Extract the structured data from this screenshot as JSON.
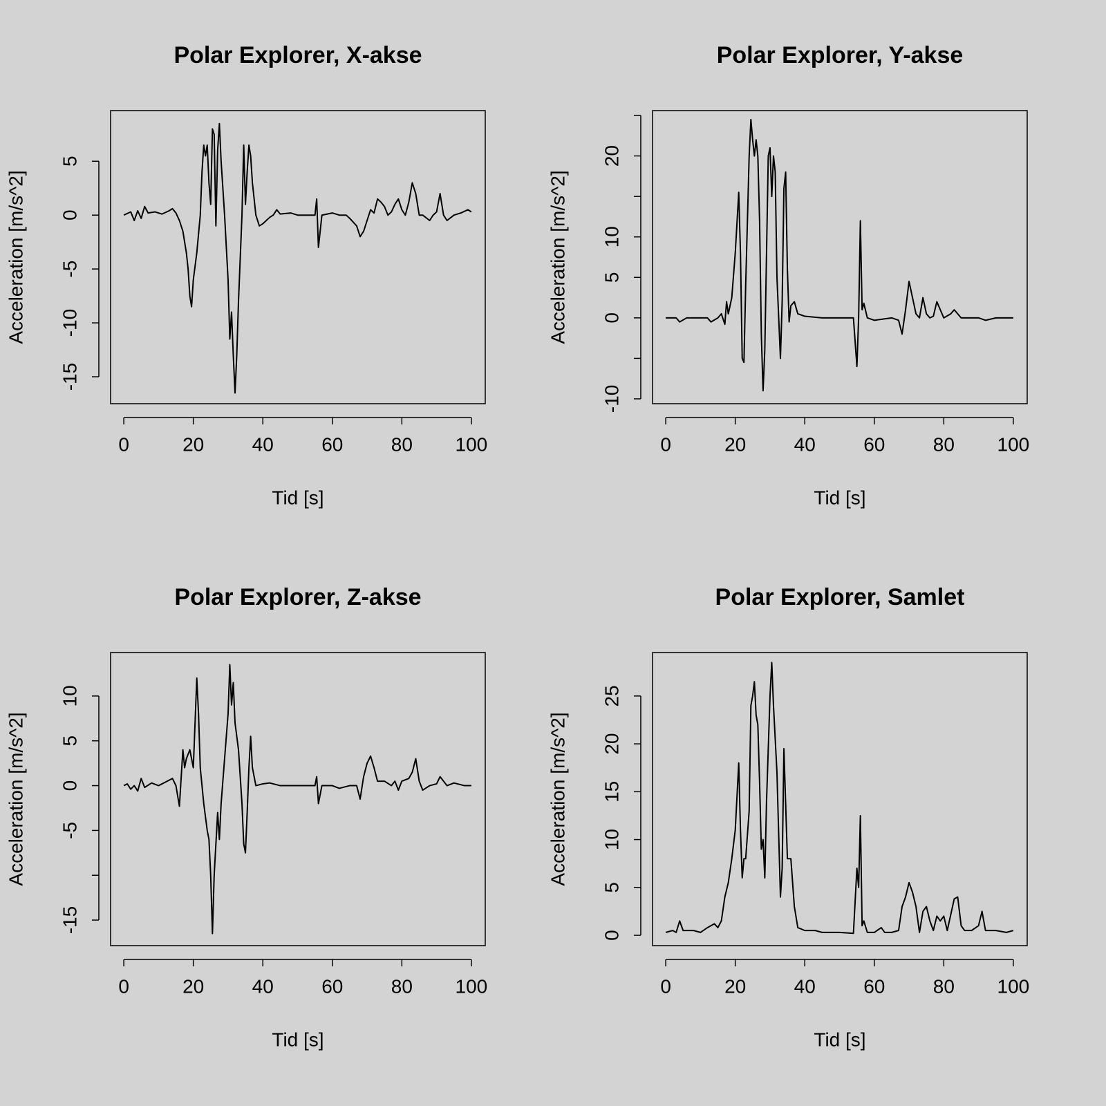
{
  "chart_data": [
    {
      "type": "line",
      "title": "Polar Explorer, X-akse",
      "xlabel": "Tid [s]",
      "ylabel": "Acceleration [m/s^2]",
      "color": "#000000",
      "xlim": [
        -3.8,
        104
      ],
      "ylim": [
        -17.5,
        9.7
      ],
      "xticks": [
        0,
        20,
        40,
        60,
        80,
        100
      ],
      "yticks": [
        -15,
        -10,
        -5,
        0,
        5
      ],
      "x": [
        0,
        2,
        3,
        4,
        5,
        6,
        7,
        9,
        11,
        13,
        14,
        15,
        16,
        17,
        18,
        18.5,
        19,
        19.5,
        20,
        21,
        22,
        22.5,
        23,
        23.5,
        24,
        24.5,
        25,
        25.5,
        26,
        26.5,
        27,
        27.5,
        28,
        29,
        30,
        30.5,
        31,
        31.5,
        32,
        32.5,
        33,
        34,
        34.5,
        35,
        35.5,
        36,
        36.5,
        37,
        38,
        39,
        40,
        42,
        43,
        44,
        45,
        48,
        50,
        52,
        55,
        55.5,
        56,
        57,
        60,
        62,
        64,
        65,
        67,
        68,
        69,
        70,
        71,
        72,
        73,
        74,
        75,
        76,
        77,
        78,
        79,
        80,
        81,
        82,
        83,
        84,
        85,
        86,
        88,
        89,
        90,
        91,
        92,
        93,
        95,
        97,
        99,
        100
      ],
      "values": [
        0,
        0.3,
        -0.5,
        0.4,
        -0.3,
        0.8,
        0.2,
        0.3,
        0.1,
        0.4,
        0.6,
        0.2,
        -0.5,
        -1.5,
        -3.5,
        -5,
        -7.5,
        -8.5,
        -6,
        -3.5,
        0,
        4,
        6.5,
        5.5,
        6.5,
        3,
        1,
        8,
        7.5,
        -1,
        6,
        8.5,
        5,
        0,
        -6,
        -11.5,
        -9,
        -13,
        -16.5,
        -13,
        -8,
        0,
        6.5,
        1,
        4,
        6.5,
        5.5,
        3,
        0,
        -1,
        -0.8,
        -0.2,
        0,
        0.5,
        0.1,
        0.2,
        0,
        0,
        0,
        1.5,
        -3,
        0,
        0.2,
        0,
        0,
        -0.3,
        -1,
        -2,
        -1.5,
        -0.5,
        0.5,
        0.2,
        1.5,
        1.2,
        0.8,
        0,
        0.3,
        1,
        1.5,
        0.5,
        0,
        1.2,
        3,
        2,
        0,
        0,
        -0.5,
        0,
        0.3,
        2,
        0,
        -0.5,
        0,
        0.2,
        0.5,
        0.3
      ]
    },
    {
      "type": "line",
      "title": "Polar Explorer, Y-akse",
      "xlabel": "Tid [s]",
      "ylabel": "Acceleration [m/s^2]",
      "color": "#000000",
      "xlim": [
        -3.8,
        104
      ],
      "ylim": [
        -10.6,
        25.6
      ],
      "xticks": [
        0,
        20,
        40,
        60,
        80,
        100
      ],
      "yticks": [
        -10,
        {
          "value": -5,
          "label": null
        },
        0,
        5,
        10,
        {
          "value": 15,
          "label": null
        },
        20,
        {
          "value": 25,
          "label": null
        }
      ],
      "x": [
        0,
        3,
        4,
        6,
        10,
        12,
        13,
        15,
        16,
        17,
        17.5,
        18,
        19,
        20,
        21,
        21.5,
        22,
        22.5,
        23,
        24,
        24.5,
        25,
        25.5,
        26,
        26.5,
        27,
        27.5,
        28,
        28.5,
        29,
        29.5,
        30,
        30.5,
        31,
        31.5,
        32,
        33,
        33.5,
        34,
        34.5,
        35,
        35.5,
        36,
        37,
        38,
        40,
        45,
        50,
        54,
        55,
        55.5,
        56,
        56.5,
        57,
        58,
        60,
        65,
        67,
        68,
        69,
        70,
        71,
        72,
        73,
        74,
        75,
        76,
        77,
        78,
        79,
        80,
        82,
        83,
        85,
        90,
        92,
        95,
        100
      ],
      "values": [
        0,
        0,
        -0.5,
        0,
        0,
        0,
        -0.5,
        0,
        0.5,
        -0.8,
        2,
        0.5,
        2.5,
        8,
        15.5,
        8,
        -5,
        -5.5,
        4,
        20,
        24.5,
        22,
        20,
        22,
        20,
        12,
        -2,
        -9,
        -4,
        8,
        20,
        21,
        15,
        20,
        18,
        5,
        -5,
        2,
        16,
        18,
        6,
        -0.5,
        1.5,
        2,
        0.5,
        0.2,
        0,
        0,
        0,
        -6,
        0,
        12,
        1,
        1.8,
        0,
        -0.3,
        0,
        -0.3,
        -2,
        1,
        4.5,
        2.5,
        0.5,
        0,
        2.5,
        0.5,
        0,
        0.2,
        2,
        1,
        0,
        0.5,
        1,
        0,
        0,
        -0.3,
        0,
        0
      ]
    },
    {
      "type": "line",
      "title": "Polar Explorer, Z-akse",
      "xlabel": "Tid [s]",
      "ylabel": "Acceleration [m/s^2]",
      "color": "#000000",
      "xlim": [
        -3.8,
        104
      ],
      "ylim": [
        -17.85,
        14.85
      ],
      "xticks": [
        0,
        20,
        40,
        60,
        80,
        100
      ],
      "yticks": [
        -15,
        {
          "value": -10,
          "label": null
        },
        -5,
        0,
        5,
        10
      ],
      "x": [
        0,
        1,
        2,
        3,
        4,
        5,
        6,
        8,
        10,
        12,
        14,
        15,
        16,
        17,
        17.5,
        18,
        19,
        20,
        21,
        21.5,
        22,
        23,
        24,
        24.5,
        25,
        25.5,
        26,
        27,
        27.5,
        28,
        29,
        30,
        30.5,
        31,
        31.5,
        32,
        33,
        34,
        34.5,
        35,
        35.5,
        36,
        36.5,
        37,
        38,
        40,
        42,
        45,
        50,
        55,
        55.5,
        56,
        57,
        60,
        62,
        65,
        67,
        68,
        69,
        70,
        71,
        72,
        73,
        75,
        77,
        78,
        79,
        80,
        82,
        83,
        84,
        85,
        86,
        88,
        90,
        91,
        93,
        95,
        98,
        100
      ],
      "values": [
        0,
        0.2,
        -0.4,
        0,
        -0.6,
        0.8,
        -0.2,
        0.3,
        0,
        0.4,
        0.8,
        0,
        -2.3,
        4,
        2,
        3,
        4,
        2,
        12,
        8,
        2,
        -2,
        -5,
        -6,
        -10,
        -16.5,
        -10,
        -3,
        -6,
        -2,
        3,
        8,
        13.5,
        9,
        11.5,
        7,
        4,
        -2,
        -6.5,
        -7.5,
        -3,
        2,
        5.5,
        2,
        0,
        0.2,
        0.3,
        0,
        0,
        0,
        1,
        -2,
        0,
        0,
        -0.3,
        0,
        0,
        -1.5,
        1,
        2.5,
        3.3,
        2,
        0.5,
        0.5,
        0,
        0.5,
        -0.5,
        0.5,
        0.8,
        1.5,
        3,
        0.5,
        -0.5,
        0,
        0.2,
        1,
        0,
        0.3,
        0,
        0
      ]
    },
    {
      "type": "line",
      "title": "Polar Explorer, Samlet",
      "xlabel": "Tid [s]",
      "ylabel": "Acceleration [m/s^2]",
      "color": "#000000",
      "xlim": [
        -3.8,
        104
      ],
      "ylim": [
        -1.08,
        29.54
      ],
      "xticks": [
        0,
        20,
        40,
        60,
        80,
        100
      ],
      "yticks": [
        0,
        5,
        10,
        15,
        20,
        25
      ],
      "x": [
        0,
        2,
        3,
        4,
        5,
        8,
        10,
        12,
        14,
        15,
        16,
        17,
        18,
        19,
        20,
        21,
        21.5,
        22,
        22.5,
        23,
        24,
        24.5,
        25,
        25.5,
        26,
        26.5,
        27,
        27.5,
        28,
        28.5,
        29,
        30,
        30.5,
        31,
        32,
        33,
        33.5,
        34,
        35,
        36,
        37,
        38,
        40,
        43,
        45,
        50,
        54,
        55,
        55.5,
        56,
        56.5,
        57,
        58,
        60,
        62,
        63,
        65,
        67,
        68,
        69,
        70,
        71,
        72,
        73,
        74,
        75,
        76,
        77,
        78,
        79,
        80,
        81,
        83,
        84,
        85,
        86,
        88,
        90,
        91,
        92,
        95,
        98,
        100
      ],
      "values": [
        0.3,
        0.5,
        0.3,
        1.5,
        0.5,
        0.5,
        0.3,
        0.8,
        1.2,
        0.8,
        1.5,
        4,
        5.5,
        8,
        11,
        18,
        11,
        6,
        8,
        8,
        13,
        24,
        25,
        26.5,
        23,
        22,
        16,
        9,
        10,
        6,
        14,
        25,
        28.5,
        24,
        17,
        4,
        7,
        19.5,
        8,
        8,
        3,
        0.8,
        0.5,
        0.5,
        0.3,
        0.3,
        0.2,
        7,
        5,
        12.5,
        1,
        1.5,
        0.3,
        0.3,
        0.8,
        0.3,
        0.3,
        0.5,
        3,
        4,
        5.5,
        4.5,
        3,
        0.3,
        2.5,
        3,
        1.5,
        0.5,
        2,
        1.5,
        2,
        0.5,
        3.8,
        4,
        1,
        0.5,
        0.5,
        1,
        2.5,
        0.5,
        0.5,
        0.3,
        0.5
      ]
    }
  ]
}
